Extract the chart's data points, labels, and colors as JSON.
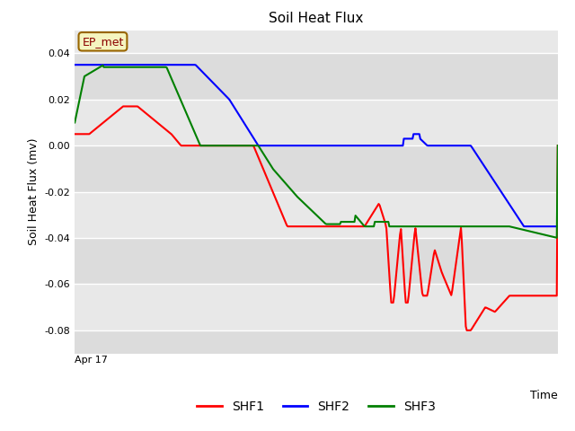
{
  "title": "Soil Heat Flux",
  "ylabel": "Soil Heat Flux (mv)",
  "xlabel_label": "Apr 17",
  "time_label": "Time",
  "ylim": [
    -0.09,
    0.05
  ],
  "yticks": [
    -0.08,
    -0.06,
    -0.04,
    -0.02,
    0.0,
    0.02,
    0.04
  ],
  "annotation_label": "EP_met",
  "legend_entries": [
    "SHF1",
    "SHF2",
    "SHF3"
  ],
  "line_colors": [
    "red",
    "blue",
    "green"
  ],
  "line_width": 1.5,
  "band_colors": [
    "#dcdcdc",
    "#e8e8e8"
  ],
  "fig_bg": "white",
  "title_fontsize": 11
}
